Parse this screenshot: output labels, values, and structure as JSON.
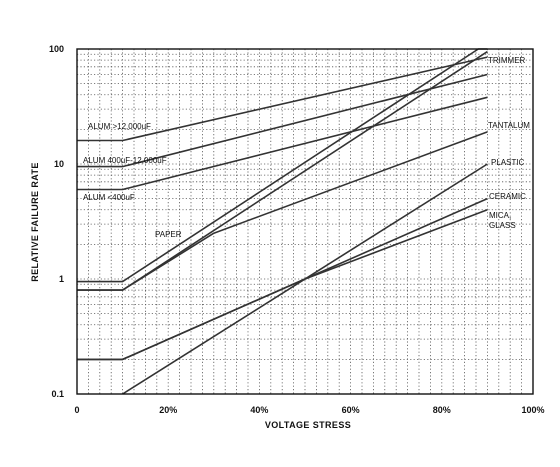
{
  "chart_data": {
    "type": "line",
    "xlabel": "VOLTAGE STRESS",
    "ylabel": "RELATIVE FAILURE RATE",
    "x_scale": "linear",
    "y_scale": "log",
    "xlim": [
      0,
      100
    ],
    "ylim": [
      0.1,
      100
    ],
    "x_ticks": [
      "0",
      "20%",
      "40%",
      "60%",
      "80%",
      "100%"
    ],
    "x_tick_values": [
      0,
      20,
      40,
      60,
      80,
      100
    ],
    "y_ticks": [
      "0.1",
      "1",
      "10",
      "100"
    ],
    "y_tick_values": [
      0.1,
      1,
      10,
      100
    ],
    "grid": true,
    "series": [
      {
        "name": "TRIMMER",
        "x": [
          0,
          10,
          88,
          90
        ],
        "y": [
          0.95,
          0.95,
          100,
          100
        ]
      },
      {
        "name": "PAPER",
        "x": [
          0,
          10,
          90
        ],
        "y": [
          0.8,
          0.8,
          95
        ]
      },
      {
        "name": "ALUM >12,000uF",
        "x": [
          0,
          10,
          90
        ],
        "y": [
          16,
          16,
          85
        ]
      },
      {
        "name": "ALUM 400uF - 12,000uF",
        "x": [
          0,
          10,
          90
        ],
        "y": [
          9.5,
          9.5,
          60
        ]
      },
      {
        "name": "ALUM <400uF",
        "x": [
          0,
          10,
          90
        ],
        "y": [
          6,
          6,
          38
        ]
      },
      {
        "name": "TANTALUM",
        "x": [
          0,
          10,
          30,
          90
        ],
        "y": [
          0.8,
          0.8,
          2.5,
          19
        ]
      },
      {
        "name": "PLASTIC",
        "x": [
          10,
          90
        ],
        "y": [
          0.1,
          10
        ]
      },
      {
        "name": "CERAMIC",
        "x": [
          0,
          10,
          50,
          90
        ],
        "y": [
          0.2,
          0.2,
          1,
          5
        ]
      },
      {
        "name": "MICA, GLASS",
        "x": [
          0,
          10,
          50,
          90
        ],
        "y": [
          0.2,
          0.2,
          1,
          4
        ]
      }
    ],
    "labels": {
      "trimmer": "TRIMMER",
      "tantalum": "TANTALUM",
      "plastic": "PLASTIC",
      "ceramic": "CERAMIC",
      "mica_line1": "MICA,",
      "mica_line2": "GLASS",
      "paper": "PAPER",
      "alum_high": "ALUM >12,000uF",
      "alum_mid": "ALUM 400uF-12,000uF",
      "alum_low": "ALUM <400uF"
    }
  },
  "colors": {
    "line": "#333333",
    "grid": "#555555",
    "text": "#111111"
  }
}
